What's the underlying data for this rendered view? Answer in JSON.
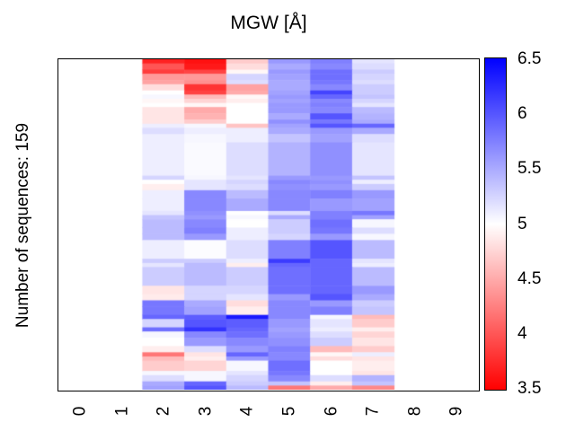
{
  "figure": {
    "title": "MGW [Å]",
    "y_axis_label": "Number of sequences: 159"
  },
  "x_axis": {
    "ticks": [
      "0",
      "1",
      "2",
      "3",
      "4",
      "5",
      "6",
      "7",
      "8",
      "9"
    ]
  },
  "colorbar": {
    "tick_labels": [
      "6.5",
      "6",
      "5.5",
      "5",
      "4.5",
      "4",
      "3.5"
    ],
    "gradient_top": "#0000ff",
    "gradient_mid": "#ffffff",
    "gradient_bottom": "#ff0000"
  },
  "chart_data": {
    "type": "heatmap",
    "title": "MGW [Å]",
    "ylabel": "Number of sequences: 159",
    "n_rows": 159,
    "x_categories": [
      0,
      1,
      2,
      3,
      4,
      5,
      6,
      7,
      8,
      9
    ],
    "data_columns": [
      2,
      3,
      4,
      5,
      6,
      7
    ],
    "value_range": [
      3.5,
      6.5
    ],
    "colormap": {
      "low": "#ff0000",
      "mid": "#ffffff",
      "high": "#0000ff",
      "mid_value": 5.0
    },
    "empty_color": "#ffffff",
    "colorbar_ticks": [
      6.5,
      6,
      5.5,
      5,
      4.5,
      4,
      3.5
    ],
    "row_bands": [
      {
        "rows": 2,
        "values": [
          3.7,
          3.6,
          4.7,
          5.6,
          5.75,
          5.15
        ]
      },
      {
        "rows": 3,
        "values": [
          4.0,
          3.65,
          4.8,
          5.5,
          5.7,
          5.2
        ]
      },
      {
        "rows": 2,
        "values": [
          3.85,
          3.9,
          4.95,
          5.6,
          5.85,
          5.3
        ]
      },
      {
        "rows": 3,
        "values": [
          4.4,
          4.4,
          5.25,
          5.55,
          5.85,
          5.25
        ]
      },
      {
        "rows": 2,
        "values": [
          4.45,
          4.35,
          5.2,
          5.5,
          5.8,
          5.2
        ]
      },
      {
        "rows": 3,
        "values": [
          4.8,
          3.8,
          4.45,
          5.5,
          5.7,
          5.3
        ]
      },
      {
        "rows": 2,
        "values": [
          5.0,
          3.9,
          4.5,
          5.55,
          6.1,
          5.3
        ]
      },
      {
        "rows": 2,
        "values": [
          5.05,
          4.6,
          4.95,
          5.6,
          5.9,
          5.35
        ]
      },
      {
        "rows": 2,
        "values": [
          4.95,
          4.75,
          4.9,
          5.55,
          5.7,
          5.25
        ]
      },
      {
        "rows": 2,
        "values": [
          5.0,
          4.95,
          5.0,
          5.6,
          5.75,
          5.15
        ]
      },
      {
        "rows": 3,
        "values": [
          4.85,
          4.5,
          5.0,
          5.6,
          5.7,
          5.4
        ]
      },
      {
        "rows": 3,
        "values": [
          4.85,
          4.55,
          5.0,
          5.5,
          6.0,
          5.45
        ]
      },
      {
        "rows": 2,
        "values": [
          4.85,
          4.7,
          5.0,
          5.65,
          5.8,
          5.5
        ]
      },
      {
        "rows": 2,
        "values": [
          5.1,
          5.05,
          4.65,
          5.55,
          6.0,
          5.9
        ]
      },
      {
        "rows": 3,
        "values": [
          5.2,
          5.1,
          5.1,
          5.5,
          5.6,
          5.5
        ]
      },
      {
        "rows": 4,
        "values": [
          5.1,
          5.05,
          5.1,
          5.35,
          5.55,
          5.2
        ]
      },
      {
        "rows": 16,
        "values": [
          5.1,
          5.03,
          5.2,
          5.45,
          5.65,
          5.15
        ]
      },
      {
        "rows": 2,
        "values": [
          5.25,
          5.05,
          5.15,
          5.6,
          5.6,
          5.35
        ]
      },
      {
        "rows": 2,
        "values": [
          5.0,
          5.15,
          5.25,
          5.7,
          5.65,
          5.1
        ]
      },
      {
        "rows": 3,
        "values": [
          4.9,
          5.15,
          5.2,
          5.65,
          5.6,
          5.3
        ]
      },
      {
        "rows": 4,
        "values": [
          5.1,
          5.7,
          5.4,
          5.7,
          5.75,
          5.6
        ]
      },
      {
        "rows": 6,
        "values": [
          5.1,
          5.7,
          5.5,
          5.7,
          5.6,
          5.55
        ]
      },
      {
        "rows": 2,
        "values": [
          5.15,
          5.65,
          5.0,
          5.2,
          5.75,
          5.8
        ]
      },
      {
        "rows": 2,
        "values": [
          5.35,
          5.6,
          5.05,
          5.5,
          5.75,
          5.55
        ]
      },
      {
        "rows": 4,
        "values": [
          5.4,
          5.7,
          5.0,
          5.3,
          5.85,
          5.05
        ]
      },
      {
        "rows": 3,
        "values": [
          5.4,
          5.75,
          5.1,
          5.3,
          5.8,
          5.2
        ]
      },
      {
        "rows": 3,
        "values": [
          5.4,
          5.6,
          5.1,
          5.25,
          5.6,
          5.05
        ]
      },
      {
        "rows": 9,
        "values": [
          5.1,
          5.02,
          5.2,
          5.75,
          6.0,
          5.4
        ]
      },
      {
        "rows": 2,
        "values": [
          5.3,
          5.3,
          5.1,
          6.15,
          5.9,
          5.15
        ]
      },
      {
        "rows": 2,
        "values": [
          5.15,
          5.4,
          4.9,
          5.9,
          5.9,
          5.1
        ]
      },
      {
        "rows": 9,
        "values": [
          5.3,
          5.4,
          5.3,
          5.85,
          5.9,
          5.4
        ]
      },
      {
        "rows": 4,
        "values": [
          4.85,
          5.25,
          5.25,
          5.85,
          5.9,
          5.6
        ]
      },
      {
        "rows": 3,
        "values": [
          4.88,
          5.25,
          5.15,
          5.6,
          6.0,
          5.5
        ]
      },
      {
        "rows": 3,
        "values": [
          5.8,
          5.5,
          4.8,
          5.7,
          5.6,
          5.3
        ]
      },
      {
        "rows": 4,
        "values": [
          5.8,
          5.55,
          4.9,
          5.7,
          5.75,
          5.35
        ]
      },
      {
        "rows": 2,
        "values": [
          5.9,
          5.95,
          6.35,
          5.7,
          5.05,
          4.6
        ]
      },
      {
        "rows": 4,
        "values": [
          5.25,
          6.0,
          5.95,
          5.6,
          5.15,
          4.7
        ]
      },
      {
        "rows": 2,
        "values": [
          5.85,
          6.2,
          5.9,
          5.55,
          5.1,
          4.9
        ]
      },
      {
        "rows": 3,
        "values": [
          5.05,
          5.7,
          5.85,
          5.6,
          5.2,
          4.75
        ]
      },
      {
        "rows": 4,
        "values": [
          5.0,
          5.6,
          5.7,
          5.65,
          5.3,
          4.85
        ]
      },
      {
        "rows": 3,
        "values": [
          4.9,
          5.2,
          5.6,
          5.75,
          4.6,
          4.7
        ]
      },
      {
        "rows": 2,
        "values": [
          4.2,
          4.85,
          5.9,
          5.7,
          4.95,
          5.1
        ]
      },
      {
        "rows": 2,
        "values": [
          4.6,
          4.9,
          5.6,
          5.7,
          4.8,
          4.85
        ]
      },
      {
        "rows": 5,
        "values": [
          4.7,
          4.75,
          5.05,
          5.85,
          5.0,
          4.9
        ]
      },
      {
        "rows": 2,
        "values": [
          5.05,
          5.05,
          5.15,
          5.8,
          5.0,
          4.85
        ]
      },
      {
        "rows": 3,
        "values": [
          5.2,
          5.05,
          5.25,
          5.7,
          5.2,
          5.45
        ]
      },
      {
        "rows": 2,
        "values": [
          5.5,
          5.9,
          5.3,
          5.35,
          4.9,
          5.35
        ]
      },
      {
        "rows": 2,
        "values": [
          5.55,
          6.0,
          5.4,
          4.2,
          4.5,
          4.3
        ]
      }
    ]
  }
}
